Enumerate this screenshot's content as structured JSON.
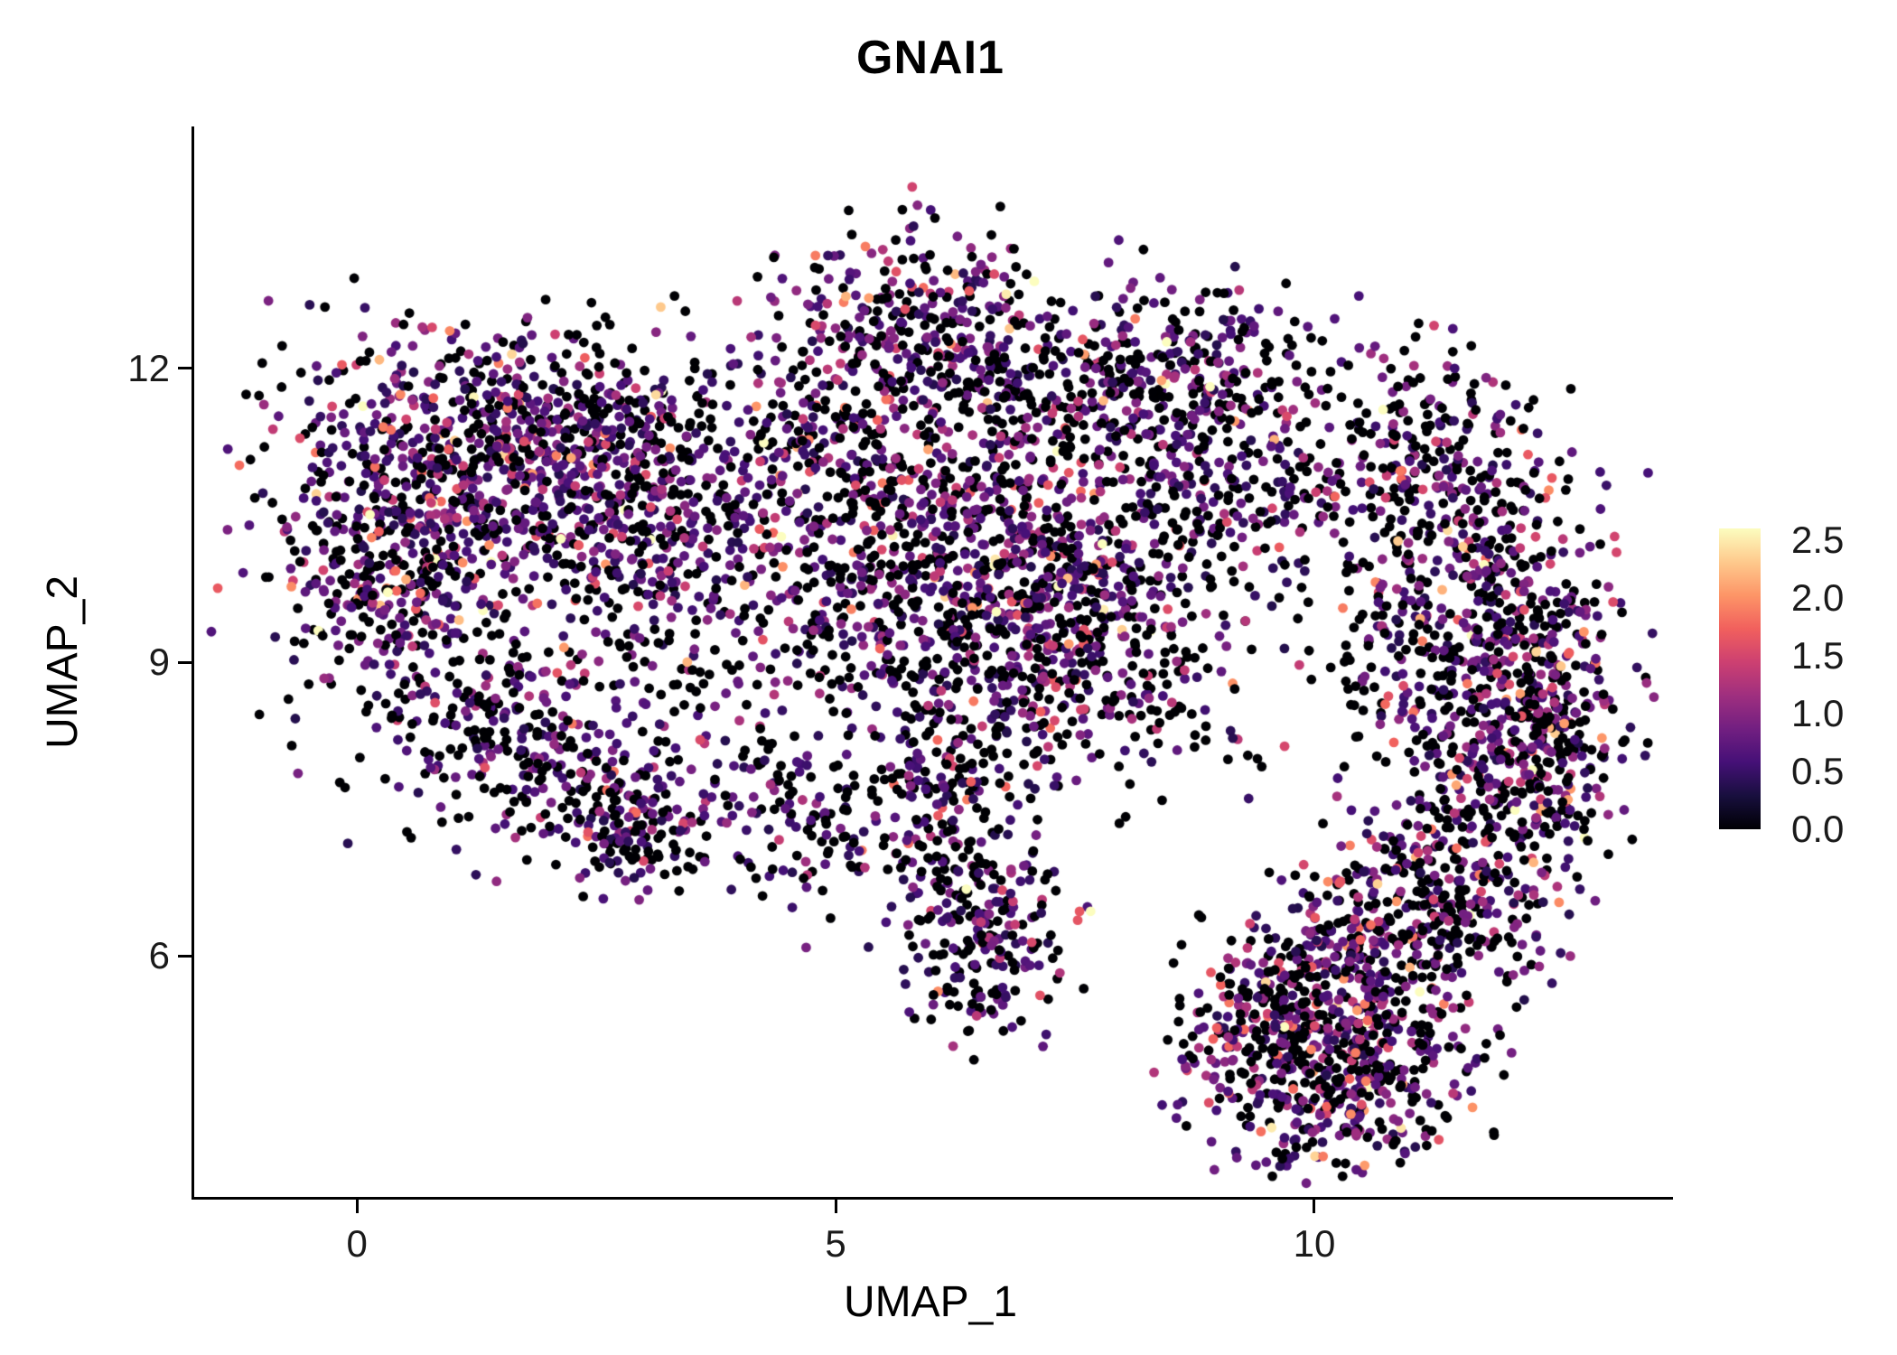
{
  "chart_data": {
    "type": "scatter",
    "title": "GNAI1",
    "xlabel": "UMAP_1",
    "ylabel": "UMAP_2",
    "xlim": [
      -1.7,
      13.68
    ],
    "ylim": [
      3.54,
      14.47
    ],
    "xticks": [
      0,
      5,
      10
    ],
    "yticks": [
      6,
      9,
      12
    ],
    "grid": false,
    "legend_position": "right",
    "point_color_encoding": "gene expression level",
    "colorbar": {
      "ticks": [
        2.5,
        2.0,
        1.5,
        1.0,
        0.5,
        0.0
      ],
      "min": 0.0,
      "max": 2.6,
      "colormap": "magma",
      "colors": [
        "#000004",
        "#180f3e",
        "#451077",
        "#721f81",
        "#9f2f7f",
        "#cd4071",
        "#f1605d",
        "#fd9567",
        "#feca8d",
        "#fcfdbf"
      ]
    },
    "style": {
      "background": "#ffffff",
      "axis_color": "#000000",
      "tick_label_color": "#1a1a1a",
      "title_color": "#000000",
      "point_radius_px": 5.4
    },
    "seed": 20240607,
    "clusters": [
      {
        "cx": 0.6,
        "cy": 10.8,
        "sx": 0.8,
        "sy": 0.8,
        "n": 520,
        "p0": 0.34,
        "s": 0.55
      },
      {
        "cx": 1.8,
        "cy": 11.3,
        "sx": 0.7,
        "sy": 0.55,
        "n": 330,
        "p0": 0.36,
        "s": 0.55
      },
      {
        "cx": 2.5,
        "cy": 10.4,
        "sx": 0.6,
        "sy": 0.6,
        "n": 240,
        "p0": 0.4,
        "s": 0.5
      },
      {
        "cx": 0.25,
        "cy": 9.7,
        "sx": 0.5,
        "sy": 0.4,
        "n": 140,
        "p0": 0.36,
        "s": 0.55
      },
      {
        "cx": 1.2,
        "cy": 8.5,
        "sx": 0.7,
        "sy": 0.5,
        "n": 170,
        "p0": 0.52,
        "s": 0.45
      },
      {
        "cx": 2.2,
        "cy": 7.9,
        "sx": 0.7,
        "sy": 0.5,
        "n": 170,
        "p0": 0.52,
        "s": 0.45
      },
      {
        "cx": 2.9,
        "cy": 7.3,
        "sx": 0.35,
        "sy": 0.3,
        "n": 110,
        "p0": 0.45,
        "s": 0.5
      },
      {
        "cx": 3.8,
        "cy": 8.6,
        "sx": 0.8,
        "sy": 0.8,
        "n": 150,
        "p0": 0.55,
        "s": 0.45
      },
      {
        "cx": 3.6,
        "cy": 10.5,
        "sx": 0.7,
        "sy": 0.6,
        "n": 190,
        "p0": 0.46,
        "s": 0.5
      },
      {
        "cx": 5.8,
        "cy": 12.3,
        "sx": 0.8,
        "sy": 0.55,
        "n": 400,
        "p0": 0.44,
        "s": 0.5
      },
      {
        "cx": 6.3,
        "cy": 10.3,
        "sx": 1.0,
        "sy": 0.65,
        "n": 620,
        "p0": 0.42,
        "s": 0.55
      },
      {
        "cx": 7.6,
        "cy": 9.6,
        "sx": 0.6,
        "sy": 0.5,
        "n": 240,
        "p0": 0.46,
        "s": 0.5
      },
      {
        "cx": 6.0,
        "cy": 7.9,
        "sx": 0.5,
        "sy": 0.5,
        "n": 120,
        "p0": 0.5,
        "s": 0.45
      },
      {
        "cx": 6.3,
        "cy": 6.9,
        "sx": 0.45,
        "sy": 0.5,
        "n": 130,
        "p0": 0.5,
        "s": 0.5
      },
      {
        "cx": 6.6,
        "cy": 6.0,
        "sx": 0.5,
        "sy": 0.45,
        "n": 150,
        "p0": 0.46,
        "s": 0.5
      },
      {
        "cx": 8.7,
        "cy": 12.0,
        "sx": 0.65,
        "sy": 0.45,
        "n": 270,
        "p0": 0.46,
        "s": 0.5
      },
      {
        "cx": 9.6,
        "cy": 10.6,
        "sx": 0.6,
        "sy": 0.6,
        "n": 130,
        "p0": 0.6,
        "s": 0.45
      },
      {
        "cx": 11.2,
        "cy": 11.0,
        "sx": 0.6,
        "sy": 0.6,
        "n": 270,
        "p0": 0.46,
        "s": 0.5
      },
      {
        "cx": 11.9,
        "cy": 9.5,
        "sx": 0.55,
        "sy": 0.7,
        "n": 320,
        "p0": 0.4,
        "s": 0.6
      },
      {
        "cx": 12.1,
        "cy": 8.0,
        "sx": 0.5,
        "sy": 0.6,
        "n": 290,
        "p0": 0.42,
        "s": 0.6
      },
      {
        "cx": 11.4,
        "cy": 6.8,
        "sx": 0.6,
        "sy": 0.6,
        "n": 320,
        "p0": 0.45,
        "s": 0.55
      },
      {
        "cx": 10.4,
        "cy": 5.8,
        "sx": 0.6,
        "sy": 0.55,
        "n": 320,
        "p0": 0.4,
        "s": 0.62
      },
      {
        "cx": 9.4,
        "cy": 5.3,
        "sx": 0.5,
        "sy": 0.45,
        "n": 210,
        "p0": 0.45,
        "s": 0.55
      },
      {
        "cx": 10.0,
        "cy": 4.5,
        "sx": 0.6,
        "sy": 0.38,
        "n": 190,
        "p0": 0.45,
        "s": 0.55
      },
      {
        "cx": 10.9,
        "cy": 9.0,
        "sx": 0.4,
        "sy": 0.5,
        "n": 90,
        "p0": 0.52,
        "s": 0.45
      },
      {
        "cx": 8.6,
        "cy": 10.9,
        "sx": 0.5,
        "sy": 0.5,
        "n": 120,
        "p0": 0.55,
        "s": 0.45
      },
      {
        "cx": 7.3,
        "cy": 11.6,
        "sx": 0.5,
        "sy": 0.5,
        "n": 120,
        "p0": 0.5,
        "s": 0.5
      },
      {
        "cx": 8.3,
        "cy": 8.7,
        "sx": 0.6,
        "sy": 0.6,
        "n": 120,
        "p0": 0.5,
        "s": 0.5
      },
      {
        "cx": 5.0,
        "cy": 11.3,
        "sx": 0.5,
        "sy": 0.4,
        "n": 100,
        "p0": 0.5,
        "s": 0.5
      },
      {
        "cx": 4.7,
        "cy": 7.4,
        "sx": 0.6,
        "sy": 0.5,
        "n": 110,
        "p0": 0.55,
        "s": 0.45
      },
      {
        "cx": 3.2,
        "cy": 11.5,
        "sx": 0.6,
        "sy": 0.4,
        "n": 90,
        "p0": 0.5,
        "s": 0.5
      },
      {
        "cx": 12.6,
        "cy": 8.8,
        "sx": 0.35,
        "sy": 0.8,
        "n": 120,
        "p0": 0.42,
        "s": 0.6
      },
      {
        "cx": 10.8,
        "cy": 4.9,
        "sx": 0.5,
        "sy": 0.4,
        "n": 140,
        "p0": 0.42,
        "s": 0.6
      },
      {
        "cx": 5.6,
        "cy": 9.3,
        "sx": 0.6,
        "sy": 0.4,
        "n": 130,
        "p0": 0.48,
        "s": 0.5
      },
      {
        "cx": 6.9,
        "cy": 8.6,
        "sx": 0.5,
        "sy": 0.45,
        "n": 120,
        "p0": 0.48,
        "s": 0.5
      }
    ]
  }
}
